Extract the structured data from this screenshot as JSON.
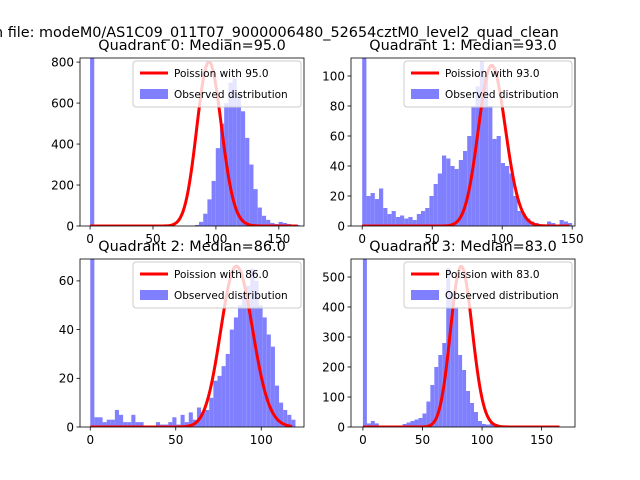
{
  "suptitle": "n file: modeM0/AS1C09_011T07_9000006480_52654cztM0_level2_quad_clean",
  "colors": {
    "hist": "#8080ff",
    "poisson": "#ff0000",
    "axes": "#000000",
    "legend_border": "#cccccc"
  },
  "chart_data": [
    {
      "type": "bar",
      "title": "Quadrant 0: Median=95.0",
      "xlim": [
        -8,
        170
      ],
      "ylim": [
        0,
        820
      ],
      "xticks": [
        0,
        50,
        100,
        150
      ],
      "yticks": [
        0,
        200,
        400,
        600,
        800
      ],
      "bin_start": 0,
      "bin_width": 3.33,
      "values": [
        820,
        0,
        0,
        0,
        0,
        0,
        0,
        0,
        0,
        0,
        0,
        0,
        0,
        0,
        0,
        0,
        0,
        0,
        0,
        0,
        0,
        0,
        0,
        0,
        0,
        5,
        20,
        60,
        130,
        220,
        380,
        500,
        600,
        700,
        720,
        640,
        560,
        430,
        300,
        180,
        90,
        50,
        30,
        15,
        10,
        20,
        15,
        10,
        5,
        5
      ],
      "poisson_mean": 95.0,
      "poisson_peak": 800,
      "poisson_range": [
        0,
        165
      ],
      "legend": [
        "Poission with 95.0",
        "Observed distribution"
      ]
    },
    {
      "type": "bar",
      "title": "Quadrant 1: Median=93.0",
      "xlim": [
        -8,
        152
      ],
      "ylim": [
        0,
        112
      ],
      "xticks": [
        0,
        50,
        100,
        150
      ],
      "yticks": [
        0,
        20,
        40,
        60,
        80,
        100
      ],
      "bin_start": 0,
      "bin_width": 3.0,
      "values": [
        112,
        20,
        22,
        18,
        25,
        12,
        8,
        10,
        6,
        7,
        5,
        6,
        4,
        8,
        10,
        12,
        20,
        28,
        35,
        47,
        45,
        40,
        38,
        44,
        50,
        60,
        80,
        93,
        110,
        100,
        80,
        58,
        60,
        42,
        40,
        35,
        20,
        10,
        8,
        5,
        3,
        2,
        1,
        1,
        3,
        2,
        1,
        4,
        3,
        2
      ],
      "poisson_mean": 93.0,
      "poisson_peak": 107,
      "poisson_range": [
        0,
        148
      ],
      "legend": [
        "Poission with 93.0",
        "Observed distribution"
      ]
    },
    {
      "type": "bar",
      "title": "Quadrant 2: Median=86.0",
      "xlim": [
        -6,
        125
      ],
      "ylim": [
        0,
        69
      ],
      "xticks": [
        0,
        50,
        100
      ],
      "yticks": [
        0,
        20,
        40,
        60
      ],
      "bin_start": 0,
      "bin_width": 2.4,
      "values": [
        69,
        4,
        4,
        2,
        3,
        3,
        7,
        5,
        2,
        2,
        5,
        2,
        2,
        0,
        0,
        0,
        2,
        1,
        1,
        2,
        4,
        1,
        5,
        2,
        6,
        3,
        8,
        6,
        7,
        12,
        19,
        21,
        25,
        30,
        40,
        45,
        50,
        55,
        58,
        65,
        60,
        50,
        45,
        38,
        33,
        17,
        10,
        7,
        5,
        3
      ],
      "poisson_mean": 86.0,
      "poisson_peak": 66,
      "poisson_range": [
        0,
        118
      ],
      "legend": [
        "Poission with 86.0",
        "Observed distribution"
      ]
    },
    {
      "type": "bar",
      "title": "Quadrant 3: Median=83.0",
      "xlim": [
        -10,
        178
      ],
      "ylim": [
        0,
        560
      ],
      "xticks": [
        0,
        50,
        100,
        150
      ],
      "yticks": [
        0,
        100,
        200,
        300,
        400,
        500
      ],
      "bin_start": 0,
      "bin_width": 3.33,
      "values": [
        560,
        12,
        20,
        12,
        5,
        4,
        2,
        1,
        3,
        5,
        10,
        15,
        20,
        25,
        30,
        45,
        85,
        140,
        200,
        240,
        280,
        530,
        450,
        400,
        240,
        190,
        120,
        80,
        50,
        20,
        10,
        8,
        12,
        10,
        6,
        5,
        3,
        2,
        2,
        1,
        1,
        1,
        1,
        1,
        0,
        0,
        0,
        0,
        0,
        0
      ],
      "poisson_mean": 83.0,
      "poisson_peak": 535,
      "poisson_range": [
        0,
        165
      ],
      "legend": [
        "Poission with 83.0",
        "Observed distribution"
      ]
    }
  ]
}
